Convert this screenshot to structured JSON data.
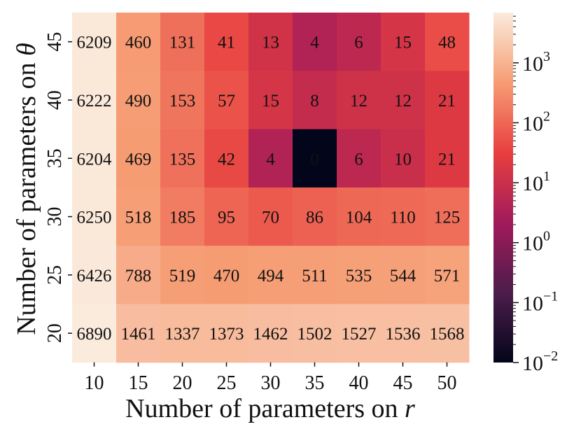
{
  "chart_data": {
    "type": "heatmap",
    "title": "",
    "xlabel": "Number of parameters on",
    "xlabel_var": "r",
    "ylabel": "Number of parameters on",
    "ylabel_var": "θ",
    "x_categories": [
      "10",
      "15",
      "20",
      "25",
      "30",
      "35",
      "40",
      "45",
      "50"
    ],
    "y_categories": [
      "45",
      "40",
      "35",
      "30",
      "25",
      "20"
    ],
    "values": [
      [
        6209,
        460,
        131,
        41,
        13,
        4,
        6,
        15,
        48
      ],
      [
        6222,
        490,
        153,
        57,
        15,
        8,
        12,
        12,
        21
      ],
      [
        6204,
        469,
        135,
        42,
        4,
        0,
        6,
        10,
        21
      ],
      [
        6250,
        518,
        185,
        95,
        70,
        86,
        104,
        110,
        125
      ],
      [
        6426,
        788,
        519,
        470,
        494,
        511,
        535,
        544,
        571
      ],
      [
        6890,
        1461,
        1337,
        1373,
        1462,
        1502,
        1527,
        1536,
        1568
      ]
    ],
    "colorbar": {
      "scale": "log",
      "range": [
        0.01,
        6890
      ],
      "tick_base": "10",
      "tick_exponents": [
        "−2",
        "−1",
        "0",
        "1",
        "2",
        "3"
      ],
      "colormap": "rocket",
      "colormap_stops": [
        "#03051a",
        "#4c1d4b",
        "#a11a5b",
        "#e83f3f",
        "#f69c73",
        "#faebdd"
      ]
    },
    "grid": false,
    "legend": "colorbar-right"
  }
}
